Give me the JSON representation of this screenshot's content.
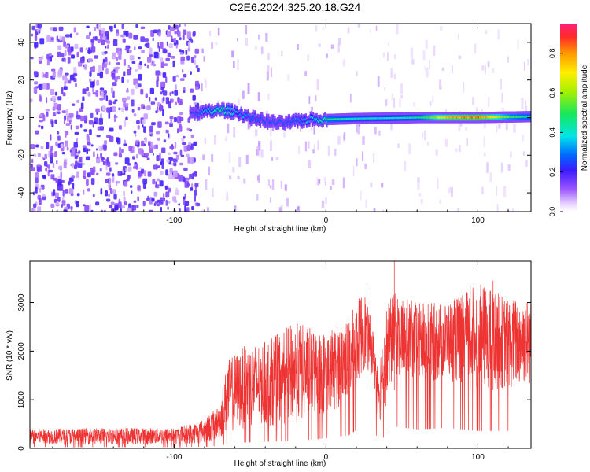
{
  "title": "C2E6.2024.325.20.18.G24",
  "chart_data": [
    {
      "type": "heatmap",
      "xlabel": "Height of straight line (km)",
      "ylabel": "Frequency (Hz)",
      "xlim": [
        -195,
        135
      ],
      "ylim": [
        -50,
        50
      ],
      "xticks": [
        -100,
        0,
        100
      ],
      "yticks": [
        -40,
        -20,
        0,
        20,
        40
      ],
      "colorbar": {
        "label": "Normalized spectral amplitude",
        "range": [
          0.0,
          0.95
        ],
        "ticks": [
          0.0,
          0.2,
          0.4,
          0.6,
          0.8
        ]
      },
      "noise_region_end_km": -85,
      "signal_track": {
        "x": [
          -90,
          -80,
          -70,
          -60,
          -50,
          -40,
          -30,
          -20,
          -10,
          0,
          20,
          40,
          60,
          80,
          100,
          120,
          135
        ],
        "freq": [
          2,
          3,
          4,
          3,
          0,
          -2,
          -3,
          -2,
          -1,
          -1,
          -0.5,
          -0.3,
          0,
          0,
          0,
          0.3,
          0.5
        ],
        "amplitude": [
          0.25,
          0.4,
          0.55,
          0.4,
          0.35,
          0.3,
          0.3,
          0.35,
          0.4,
          0.55,
          0.45,
          0.45,
          0.5,
          0.85,
          0.95,
          0.6,
          0.5
        ]
      }
    },
    {
      "type": "line",
      "xlabel": "Height of straight line (km)",
      "ylabel": "SNR (10 * v/v)",
      "xlim": [
        -195,
        135
      ],
      "ylim": [
        0,
        3850
      ],
      "xticks": [
        -100,
        0,
        100
      ],
      "yticks": [
        0,
        1000,
        2000,
        3000
      ],
      "series_color": "#ee3333",
      "envelope": {
        "x": [
          -195,
          -150,
          -100,
          -80,
          -70,
          -65,
          -55,
          -40,
          -20,
          0,
          15,
          25,
          30,
          35,
          40,
          45,
          60,
          80,
          100,
          120,
          135
        ],
        "low": [
          80,
          80,
          80,
          100,
          180,
          300,
          400,
          450,
          500,
          700,
          900,
          1600,
          1500,
          500,
          900,
          1500,
          1300,
          1400,
          1200,
          1200,
          1300
        ],
        "high": [
          400,
          420,
          420,
          600,
          900,
          1800,
          2100,
          2200,
          2600,
          2400,
          2700,
          3300,
          2600,
          1800,
          3000,
          3200,
          3000,
          3000,
          3400,
          3100,
          3100
        ]
      },
      "peaks": [
        [
          45,
          3850
        ],
        [
          27,
          3300
        ],
        [
          110,
          3450
        ],
        [
          95,
          3350
        ]
      ]
    }
  ]
}
